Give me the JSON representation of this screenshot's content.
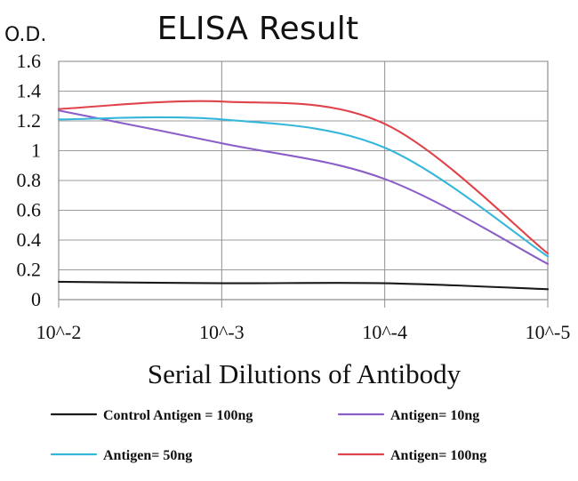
{
  "chart_data": {
    "type": "line",
    "title": "ELISA Result",
    "ylabel": "O.D.",
    "xlabel": "Serial Dilutions of Antibody",
    "categories": [
      "10^-2",
      "10^-3",
      "10^-4",
      "10^-5"
    ],
    "ylim": [
      0,
      1.6
    ],
    "yticks": [
      0,
      0.2,
      0.4,
      0.6,
      0.8,
      1,
      1.2,
      1.4,
      1.6
    ],
    "grid": true,
    "legend_position": "bottom",
    "series": [
      {
        "name": "Control Antigen = 100ng",
        "color": "#1a1a1a",
        "values": [
          0.12,
          0.11,
          0.11,
          0.07
        ]
      },
      {
        "name": "Antigen= 10ng",
        "color": "#8b5fc7",
        "values": [
          1.27,
          1.05,
          0.81,
          0.24
        ]
      },
      {
        "name": "Antigen= 50ng",
        "color": "#35b7dc",
        "values": [
          1.21,
          1.21,
          1.02,
          0.29
        ]
      },
      {
        "name": "Antigen= 100ng",
        "color": "#e0444b",
        "values": [
          1.28,
          1.33,
          1.18,
          0.31
        ]
      }
    ]
  }
}
